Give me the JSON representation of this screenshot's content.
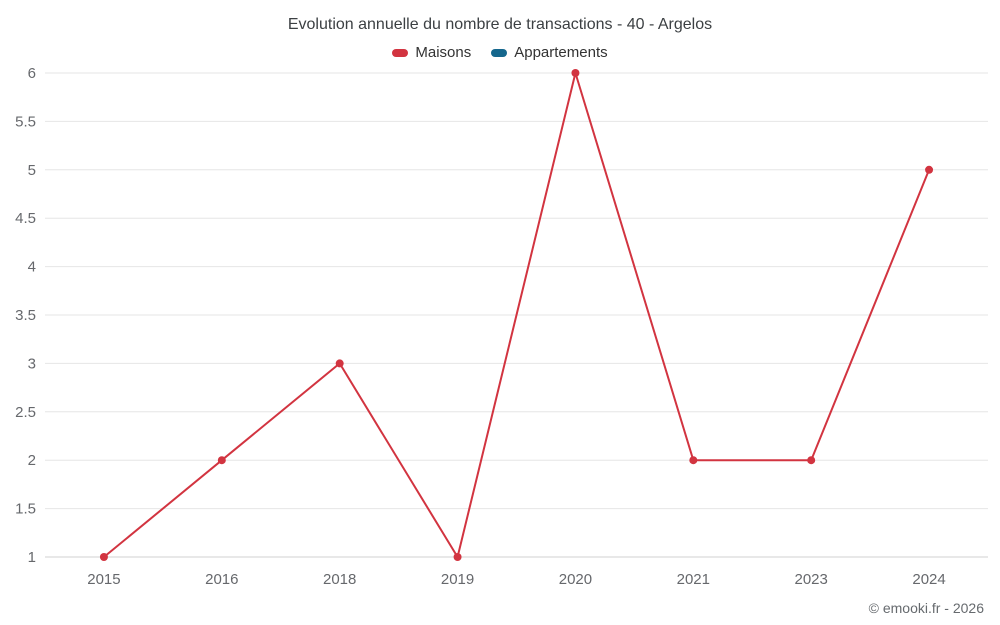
{
  "header": {
    "title": "Evolution annuelle du nombre de transactions - 40 - Argelos"
  },
  "legend": [
    {
      "label": "Maisons",
      "color": "#d23440"
    },
    {
      "label": "Appartements",
      "color": "#15678d"
    }
  ],
  "footer": {
    "credit": "© emooki.fr - 2026"
  },
  "chart_data": {
    "type": "line",
    "title": "Evolution annuelle du nombre de transactions - 40 - Argelos",
    "categories": [
      "2015",
      "2016",
      "2018",
      "2019",
      "2020",
      "2021",
      "2023",
      "2024"
    ],
    "series": [
      {
        "name": "Maisons",
        "color": "#d23440",
        "values": [
          1,
          2,
          3,
          1,
          6,
          2,
          2,
          5
        ]
      },
      {
        "name": "Appartements",
        "color": "#15678d",
        "values": []
      }
    ],
    "xlabel": "",
    "ylabel": "",
    "ylim": [
      1,
      6
    ],
    "ytick_step": 0.5,
    "grid": "horizontal",
    "legend_position": "top",
    "colors": {
      "gridline": "#e6e6e6",
      "axis_line": "#d0d0d0",
      "axis_label": "#66686c"
    }
  }
}
